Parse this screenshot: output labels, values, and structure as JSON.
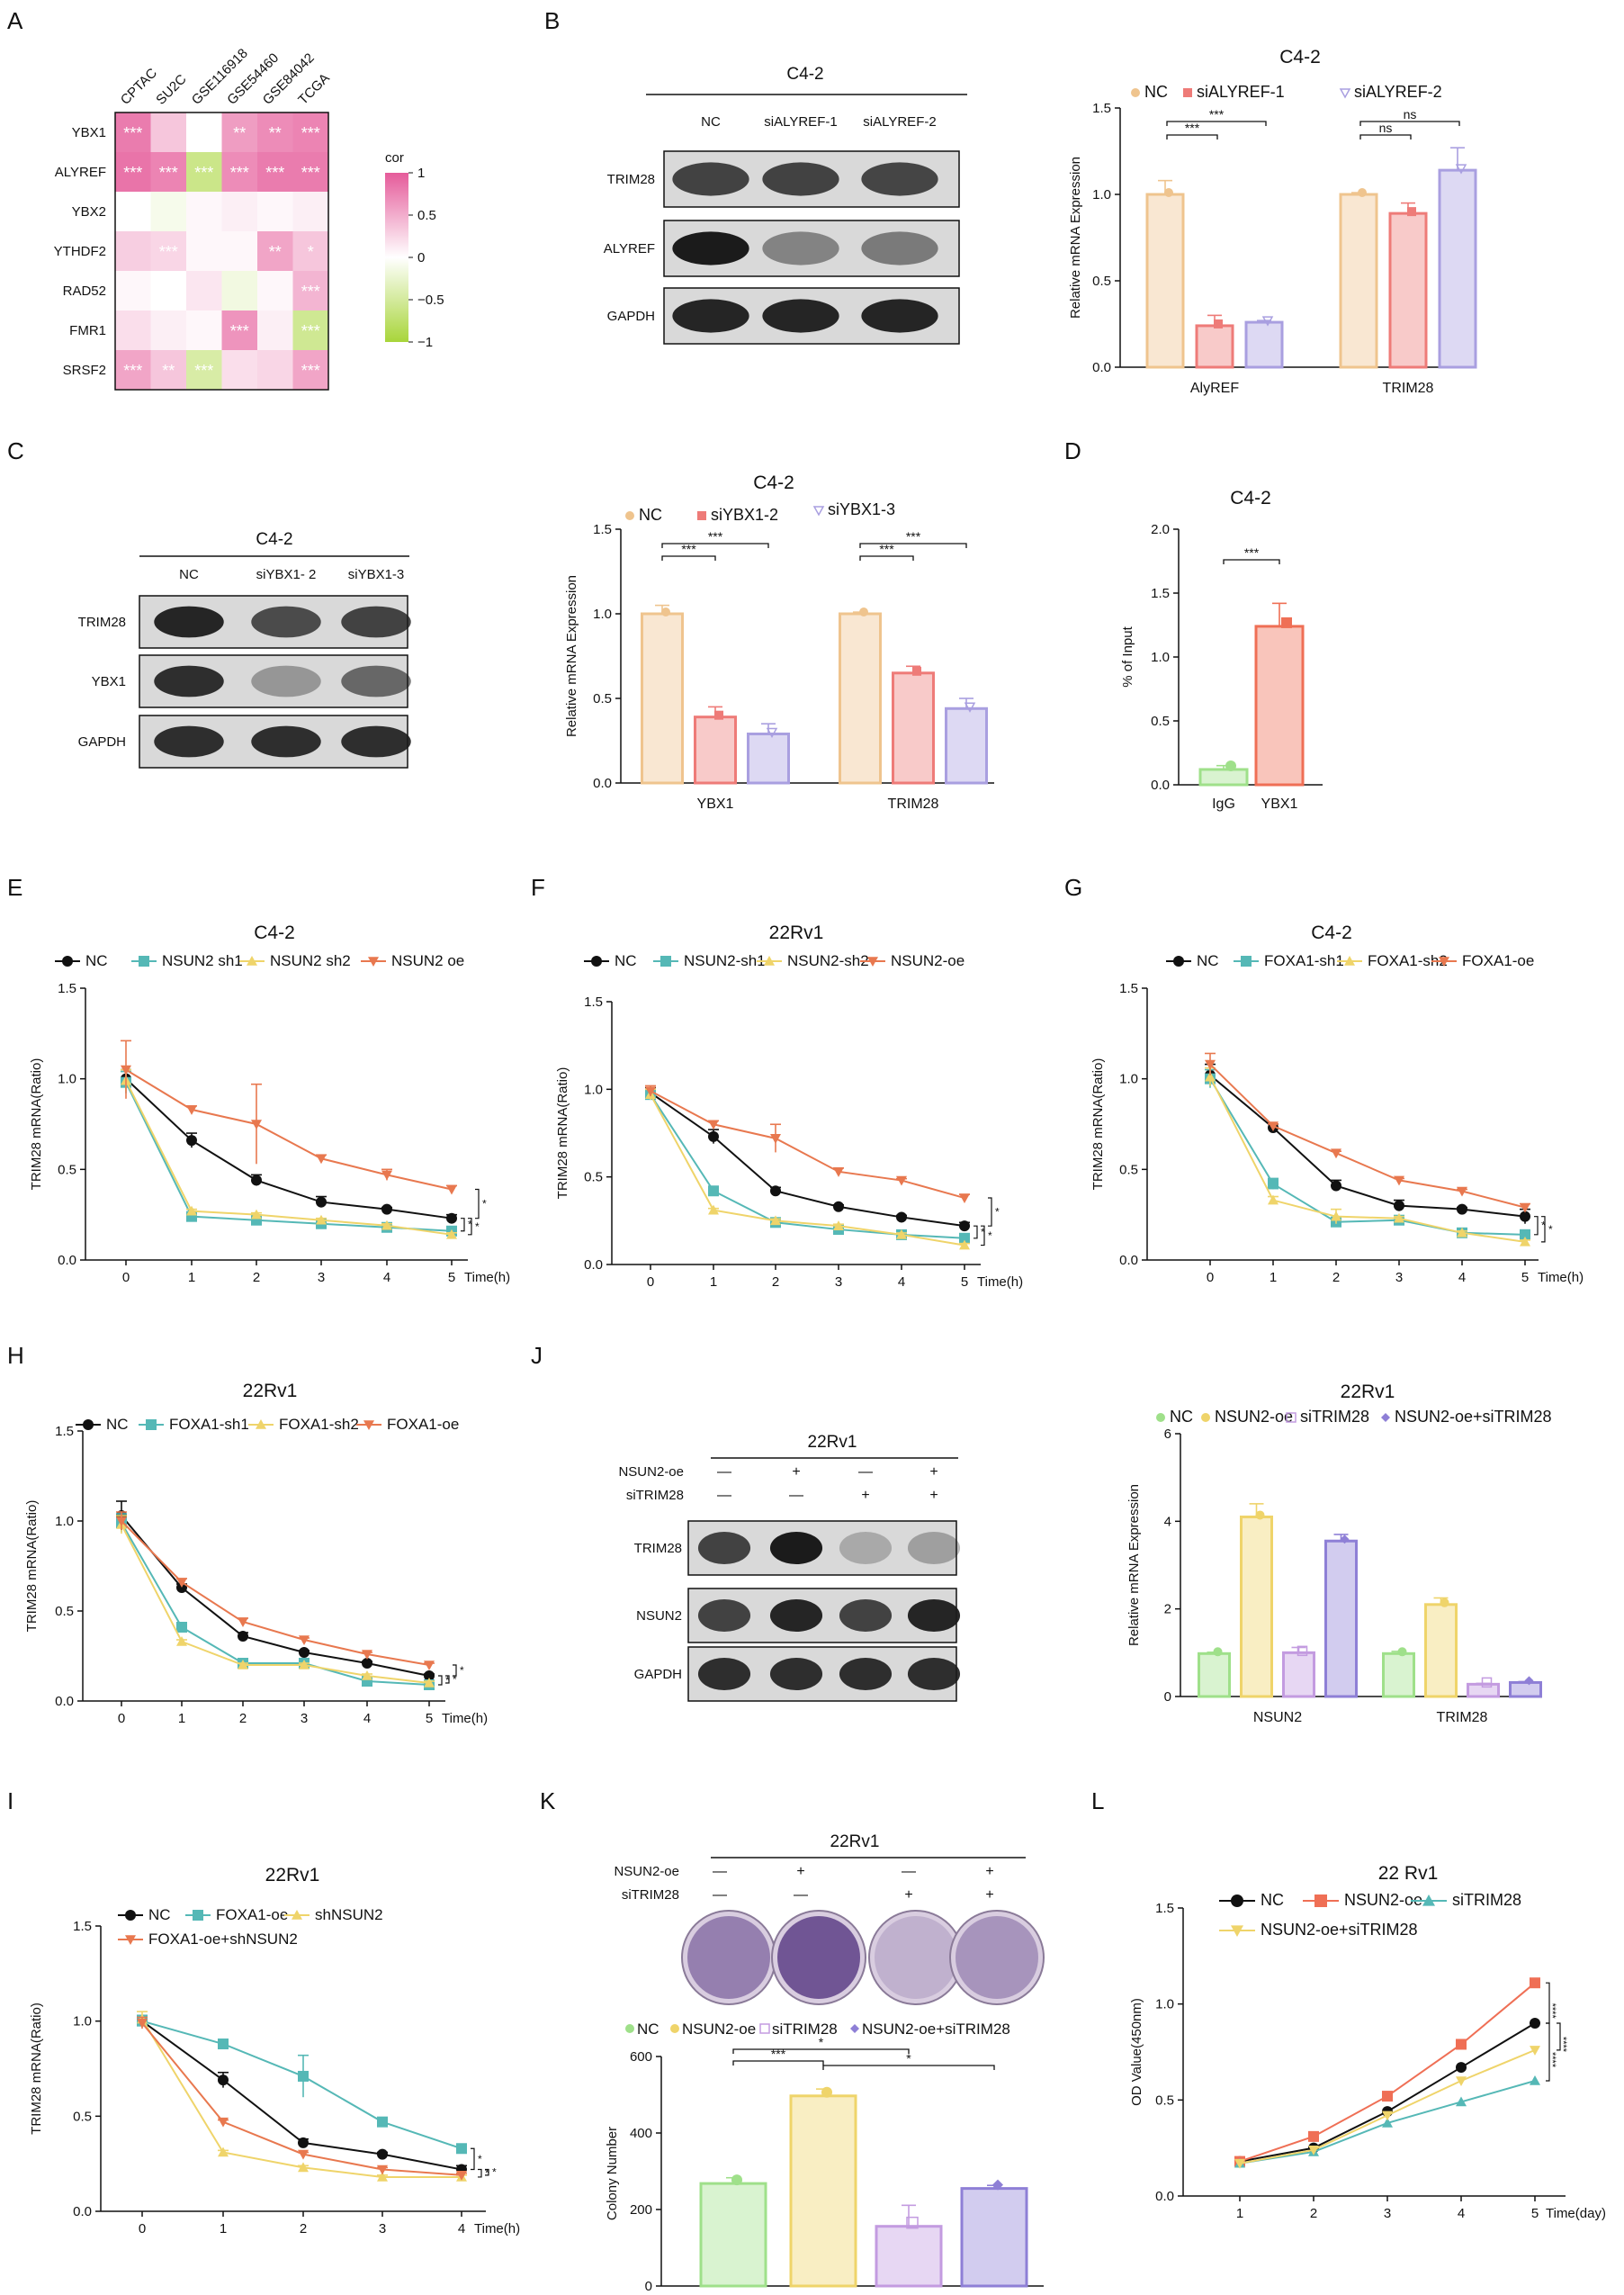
{
  "colors": {
    "nc_peach": "#efc48e",
    "red": "#ee7b78",
    "purple": "#a99fe0",
    "green": "#9fe08a",
    "yellow": "#efd46a",
    "teal": "#55b8b6",
    "orange": "#e8784f",
    "black": "#111111",
    "coral": "#ef6f55",
    "heat_pos": "#e55b9a",
    "heat_neg": "#a8d53a",
    "blot": "#1b1b1b"
  },
  "panels": {
    "A": "A",
    "B": "B",
    "C": "C",
    "D": "D",
    "E": "E",
    "F": "F",
    "G": "G",
    "H": "H",
    "I": "I",
    "J": "J",
    "K": "K",
    "L": "L"
  },
  "blots": {
    "B": {
      "title": "C4-2",
      "lanes": [
        "NC",
        "siALYREF-1",
        "siALYREF-2"
      ],
      "rows": [
        "TRIM28",
        "ALYREF",
        "GAPDH"
      ],
      "intensity": [
        [
          0.8,
          0.8,
          0.78
        ],
        [
          1.0,
          0.45,
          0.5
        ],
        [
          0.95,
          0.95,
          0.95
        ]
      ]
    },
    "C": {
      "title": "C4-2",
      "lanes": [
        "NC",
        "siYBX1- 2",
        "siYBX1-3"
      ],
      "rows": [
        "TRIM28",
        "YBX1",
        "GAPDH"
      ],
      "intensity": [
        [
          0.95,
          0.75,
          0.8
        ],
        [
          0.9,
          0.35,
          0.6
        ],
        [
          0.9,
          0.9,
          0.9
        ]
      ]
    },
    "J": {
      "title": "22Rv1",
      "conditions": [
        "NSUN2-oe",
        "siTRIM28"
      ],
      "signs": [
        [
          "—",
          "+",
          "—",
          "+"
        ],
        [
          "—",
          "—",
          "+",
          "+"
        ]
      ],
      "rows": [
        "TRIM28",
        "NSUN2",
        "GAPDH"
      ],
      "intensity": [
        [
          0.8,
          1.0,
          0.25,
          0.3
        ],
        [
          0.8,
          0.95,
          0.8,
          0.95
        ],
        [
          0.9,
          0.9,
          0.9,
          0.9
        ]
      ]
    },
    "K": {
      "title": "22Rv1",
      "conditions": [
        "NSUN2-oe",
        "siTRIM28"
      ],
      "signs": [
        [
          "—",
          "+",
          "—",
          "+"
        ],
        [
          "—",
          "—",
          "+",
          "+"
        ]
      ]
    }
  },
  "chart_data": [
    {
      "id": "A",
      "type": "heatmap",
      "columns": [
        "CPTAC",
        "SU2C",
        "GSE116918",
        "GSE54460",
        "GSE84042",
        "TCGA"
      ],
      "rows": [
        "YBX1",
        "ALYREF",
        "YBX2",
        "YTHDF2",
        "RAD52",
        "FMR1",
        "SRSF2"
      ],
      "values": [
        [
          0.8,
          0.35,
          0.0,
          0.6,
          0.7,
          0.75
        ],
        [
          0.85,
          0.75,
          -0.6,
          0.7,
          0.8,
          0.8
        ],
        [
          0.0,
          -0.1,
          0.05,
          0.1,
          0.05,
          0.1
        ],
        [
          0.3,
          0.25,
          0.05,
          0.05,
          0.55,
          0.35
        ],
        [
          0.05,
          0.0,
          0.15,
          -0.15,
          0.05,
          0.45
        ],
        [
          0.2,
          0.1,
          0.05,
          0.65,
          0.1,
          -0.55
        ],
        [
          0.55,
          0.35,
          -0.45,
          0.2,
          0.25,
          0.55
        ]
      ],
      "stars": [
        [
          "***",
          "",
          "",
          "**",
          "**",
          "***"
        ],
        [
          "***",
          "***",
          "***",
          "***",
          "***",
          "***"
        ],
        [
          "",
          "",
          "",
          "",
          "",
          ""
        ],
        [
          "",
          "***",
          "",
          "",
          "**",
          "*"
        ],
        [
          "",
          "",
          "",
          "",
          "",
          "***"
        ],
        [
          "",
          "",
          "",
          "***",
          "",
          "***"
        ],
        [
          "***",
          "**",
          "***",
          "",
          "",
          "***"
        ]
      ],
      "legend_title": "cor",
      "legend_ticks": [
        "1",
        "0.5",
        "0",
        "−0.5",
        "−1"
      ]
    },
    {
      "id": "B",
      "type": "bar",
      "title": "C4-2",
      "ylabel": "Relative mRNA Expression",
      "ylim": [
        0,
        1.5
      ],
      "yticks": [
        "0.0",
        "0.5",
        "1.0",
        "1.5"
      ],
      "categories": [
        "AlyREF",
        "TRIM28"
      ],
      "series": [
        {
          "name": "NC",
          "values": [
            1.0,
            1.0
          ],
          "err": [
            0.08,
            0.01
          ]
        },
        {
          "name": "siALYREF-1",
          "values": [
            0.24,
            0.89
          ],
          "err": [
            0.06,
            0.06
          ]
        },
        {
          "name": "siALYREF-2",
          "values": [
            0.26,
            1.14
          ],
          "err": [
            0.01,
            0.13
          ]
        }
      ],
      "sig": [
        "***",
        "***",
        "ns",
        "ns"
      ]
    },
    {
      "id": "C",
      "type": "bar",
      "title": "C4-2",
      "ylabel": "Relative mRNA Expression",
      "ylim": [
        0,
        1.5
      ],
      "yticks": [
        "0.0",
        "0.5",
        "1.0",
        "1.5"
      ],
      "categories": [
        "YBX1",
        "TRIM28"
      ],
      "series": [
        {
          "name": "NC",
          "values": [
            1.0,
            1.0
          ],
          "err": [
            0.05,
            0.01
          ]
        },
        {
          "name": "siYBX1-2",
          "values": [
            0.39,
            0.65
          ],
          "err": [
            0.06,
            0.04
          ]
        },
        {
          "name": "siYBX1-3",
          "values": [
            0.29,
            0.44
          ],
          "err": [
            0.06,
            0.06
          ]
        }
      ],
      "sig": [
        "***",
        "***",
        "***",
        "***"
      ]
    },
    {
      "id": "D",
      "type": "bar",
      "title": "C4-2",
      "ylabel": "% of Input",
      "ylim": [
        0,
        2.0
      ],
      "yticks": [
        "0.0",
        "0.5",
        "1.0",
        "1.5",
        "2.0"
      ],
      "categories": [
        "IgG",
        "YBX1"
      ],
      "values": [
        0.12,
        1.24
      ],
      "err": [
        0.03,
        0.18
      ],
      "sig": "***"
    },
    {
      "id": "E",
      "type": "line",
      "title": "C4-2",
      "ylabel": "TRIM28 mRNA(Ratio)",
      "xlabel": "Time(h)",
      "x": [
        0,
        1,
        2,
        3,
        4,
        5
      ],
      "ylim": [
        0,
        1.5
      ],
      "yticks": [
        "0.0",
        "0.5",
        "1.0",
        "1.5"
      ],
      "series": [
        {
          "name": "NC",
          "values": [
            1.0,
            0.66,
            0.44,
            0.32,
            0.28,
            0.23
          ],
          "err": [
            0.05,
            0.04,
            0.03,
            0.03,
            0.01,
            0.02
          ]
        },
        {
          "name": "NSUN2 sh1",
          "values": [
            0.98,
            0.24,
            0.22,
            0.2,
            0.18,
            0.16
          ],
          "err": [
            0.06,
            0.01,
            0.01,
            0.01,
            0.01,
            0.01
          ]
        },
        {
          "name": "NSUN2 sh2",
          "values": [
            0.99,
            0.27,
            0.25,
            0.22,
            0.19,
            0.14
          ],
          "err": [
            0.06,
            0.01,
            0.01,
            0.01,
            0.01,
            0.01
          ]
        },
        {
          "name": "NSUN2 oe",
          "values": [
            1.05,
            0.83,
            0.75,
            0.56,
            0.47,
            0.39
          ],
          "err": [
            0.16,
            0.02,
            0.22,
            0.02,
            0.03,
            0.02
          ]
        }
      ],
      "sig": [
        "*",
        "*",
        "*"
      ]
    },
    {
      "id": "F",
      "type": "line",
      "title": "22Rv1",
      "ylabel": "TRIM28 mRNA(Ratio)",
      "xlabel": "Time(h)",
      "x": [
        0,
        1,
        2,
        3,
        4,
        5
      ],
      "ylim": [
        0,
        1.5
      ],
      "yticks": [
        "0.0",
        "0.5",
        "1.0",
        "1.5"
      ],
      "series": [
        {
          "name": "NC",
          "values": [
            0.98,
            0.73,
            0.42,
            0.33,
            0.27,
            0.22
          ],
          "err": [
            0.03,
            0.04,
            0.02,
            0.01,
            0.01,
            0.02
          ]
        },
        {
          "name": "NSUN2-sh1",
          "values": [
            0.97,
            0.42,
            0.24,
            0.2,
            0.17,
            0.15
          ],
          "err": [
            0.03,
            0.01,
            0.01,
            0.01,
            0.01,
            0.01
          ]
        },
        {
          "name": "NSUN2-sh2",
          "values": [
            0.97,
            0.31,
            0.25,
            0.22,
            0.17,
            0.11
          ],
          "err": [
            0.03,
            0.01,
            0.01,
            0.01,
            0.01,
            0.01
          ]
        },
        {
          "name": "NSUN2-oe",
          "values": [
            0.99,
            0.8,
            0.72,
            0.53,
            0.48,
            0.38
          ],
          "err": [
            0.03,
            0.02,
            0.08,
            0.02,
            0.01,
            0.02
          ]
        }
      ],
      "sig": [
        "*",
        "*",
        "*"
      ]
    },
    {
      "id": "G",
      "type": "line",
      "title": "C4-2",
      "ylabel": "TRIM28 mRNA(Ratio)",
      "xlabel": "Time(h)",
      "x": [
        0,
        1,
        2,
        3,
        4,
        5
      ],
      "ylim": [
        0,
        1.5
      ],
      "yticks": [
        "0.0",
        "0.5",
        "1.0",
        "1.5"
      ],
      "series": [
        {
          "name": "NC",
          "values": [
            1.02,
            0.73,
            0.41,
            0.3,
            0.28,
            0.24
          ],
          "err": [
            0.06,
            0.02,
            0.03,
            0.03,
            0.01,
            0.04
          ]
        },
        {
          "name": "FOXA1-sh1",
          "values": [
            1.0,
            0.42,
            0.21,
            0.22,
            0.15,
            0.14
          ],
          "err": [
            0.05,
            0.03,
            0.02,
            0.01,
            0.01,
            0.01
          ]
        },
        {
          "name": "FOXA1-sh2",
          "values": [
            1.01,
            0.33,
            0.24,
            0.23,
            0.15,
            0.1
          ],
          "err": [
            0.05,
            0.02,
            0.04,
            0.01,
            0.01,
            0.01
          ]
        },
        {
          "name": "FOXA1-oe",
          "values": [
            1.08,
            0.74,
            0.59,
            0.44,
            0.38,
            0.29
          ],
          "err": [
            0.06,
            0.01,
            0.01,
            0.01,
            0.01,
            0.02
          ]
        }
      ],
      "sig": [
        "*",
        "*"
      ]
    },
    {
      "id": "H",
      "type": "line",
      "title": "22Rv1",
      "ylabel": "TRIM28 mRNA(Ratio)",
      "xlabel": "Time(h)",
      "x": [
        0,
        1,
        2,
        3,
        4,
        5
      ],
      "ylim": [
        0,
        1.5
      ],
      "yticks": [
        "0.0",
        "0.5",
        "1.0",
        "1.5"
      ],
      "series": [
        {
          "name": "NC",
          "values": [
            1.03,
            0.63,
            0.36,
            0.27,
            0.21,
            0.14
          ],
          "err": [
            0.08,
            0.02,
            0.02,
            0.01,
            0.01,
            0.01
          ]
        },
        {
          "name": "FOXA1-sh1",
          "values": [
            0.99,
            0.41,
            0.21,
            0.21,
            0.11,
            0.09
          ],
          "err": [
            0.05,
            0.01,
            0.01,
            0.01,
            0.01,
            0.01
          ]
        },
        {
          "name": "FOXA1-sh2",
          "values": [
            0.98,
            0.33,
            0.2,
            0.2,
            0.14,
            0.1
          ],
          "err": [
            0.05,
            0.01,
            0.01,
            0.01,
            0.01,
            0.01
          ]
        },
        {
          "name": "FOXA1-oe",
          "values": [
            1.0,
            0.66,
            0.44,
            0.34,
            0.26,
            0.2
          ],
          "err": [
            0.05,
            0.02,
            0.02,
            0.01,
            0.01,
            0.01
          ]
        }
      ],
      "sig": [
        "*",
        "*",
        "*"
      ]
    },
    {
      "id": "I",
      "type": "line",
      "title": "22Rv1",
      "ylabel": "TRIM28 mRNA(Ratio)",
      "xlabel": "Time(h)",
      "x": [
        0,
        1,
        2,
        3,
        4
      ],
      "ylim": [
        0,
        1.5
      ],
      "yticks": [
        "0.0",
        "0.5",
        "1.0",
        "1.5"
      ],
      "series": [
        {
          "name": "NC",
          "values": [
            1.0,
            0.69,
            0.36,
            0.3,
            0.22
          ],
          "err": [
            0.03,
            0.04,
            0.02,
            0.01,
            0.02
          ]
        },
        {
          "name": "FOXA1-oe",
          "values": [
            1.0,
            0.88,
            0.71,
            0.47,
            0.33
          ],
          "err": [
            0.03,
            0.02,
            0.11,
            0.01,
            0.02
          ]
        },
        {
          "name": "shNSUN2",
          "values": [
            1.01,
            0.31,
            0.23,
            0.18,
            0.18
          ],
          "err": [
            0.04,
            0.01,
            0.01,
            0.01,
            0.01
          ]
        },
        {
          "name": "FOXA1-oe+shNSUN2",
          "values": [
            0.99,
            0.47,
            0.3,
            0.22,
            0.19
          ],
          "err": [
            0.03,
            0.01,
            0.01,
            0.01,
            0.01
          ]
        }
      ],
      "sig": [
        "*",
        "*",
        "*"
      ]
    },
    {
      "id": "J",
      "type": "bar",
      "title": "22Rv1",
      "ylabel": "Relative mRNA Expression",
      "ylim": [
        0,
        6
      ],
      "yticks": [
        "0",
        "2",
        "4",
        "6"
      ],
      "categories": [
        "NSUN2",
        "TRIM28"
      ],
      "series": [
        {
          "name": "NC",
          "values": [
            0.98,
            0.98
          ],
          "err": [
            0.03,
            0.05
          ]
        },
        {
          "name": "NSUN2-oe",
          "values": [
            4.1,
            2.1
          ],
          "err": [
            0.3,
            0.15
          ]
        },
        {
          "name": "siTRIM28",
          "values": [
            1.0,
            0.28
          ],
          "err": [
            0.12,
            0.02
          ]
        },
        {
          "name": "NSUN2-oe+siTRIM28",
          "values": [
            3.55,
            0.32
          ],
          "err": [
            0.15,
            0.02
          ]
        }
      ]
    },
    {
      "id": "K",
      "type": "bar",
      "ylabel": "Colony Number",
      "ylim": [
        0,
        600
      ],
      "yticks": [
        "0",
        "200",
        "400",
        "600"
      ],
      "categories": [
        "NC",
        "NSUN2-oe",
        "siTRIM28",
        "NSUN2-oe+siTRIM28"
      ],
      "values": [
        268,
        497,
        156,
        255
      ],
      "err": [
        15,
        18,
        55,
        8
      ],
      "sig": [
        "***",
        "*",
        "*"
      ]
    },
    {
      "id": "L",
      "type": "line",
      "title": "22 Rv1",
      "ylabel": "OD Value(450nm)",
      "xlabel": "Time(day)",
      "x": [
        1,
        2,
        3,
        4,
        5
      ],
      "ylim": [
        0,
        1.5
      ],
      "yticks": [
        "0.0",
        "0.5",
        "1.0",
        "1.5"
      ],
      "series": [
        {
          "name": "NC",
          "values": [
            0.18,
            0.25,
            0.44,
            0.67,
            0.9
          ]
        },
        {
          "name": "NSUN2-oe",
          "values": [
            0.18,
            0.31,
            0.52,
            0.79,
            1.11
          ]
        },
        {
          "name": "siTRIM28",
          "values": [
            0.17,
            0.23,
            0.38,
            0.49,
            0.6
          ]
        },
        {
          "name": "NSUN2-oe+siTRIM28",
          "values": [
            0.17,
            0.24,
            0.42,
            0.6,
            0.76
          ]
        }
      ],
      "sig": [
        "****",
        "****",
        "****"
      ]
    }
  ]
}
